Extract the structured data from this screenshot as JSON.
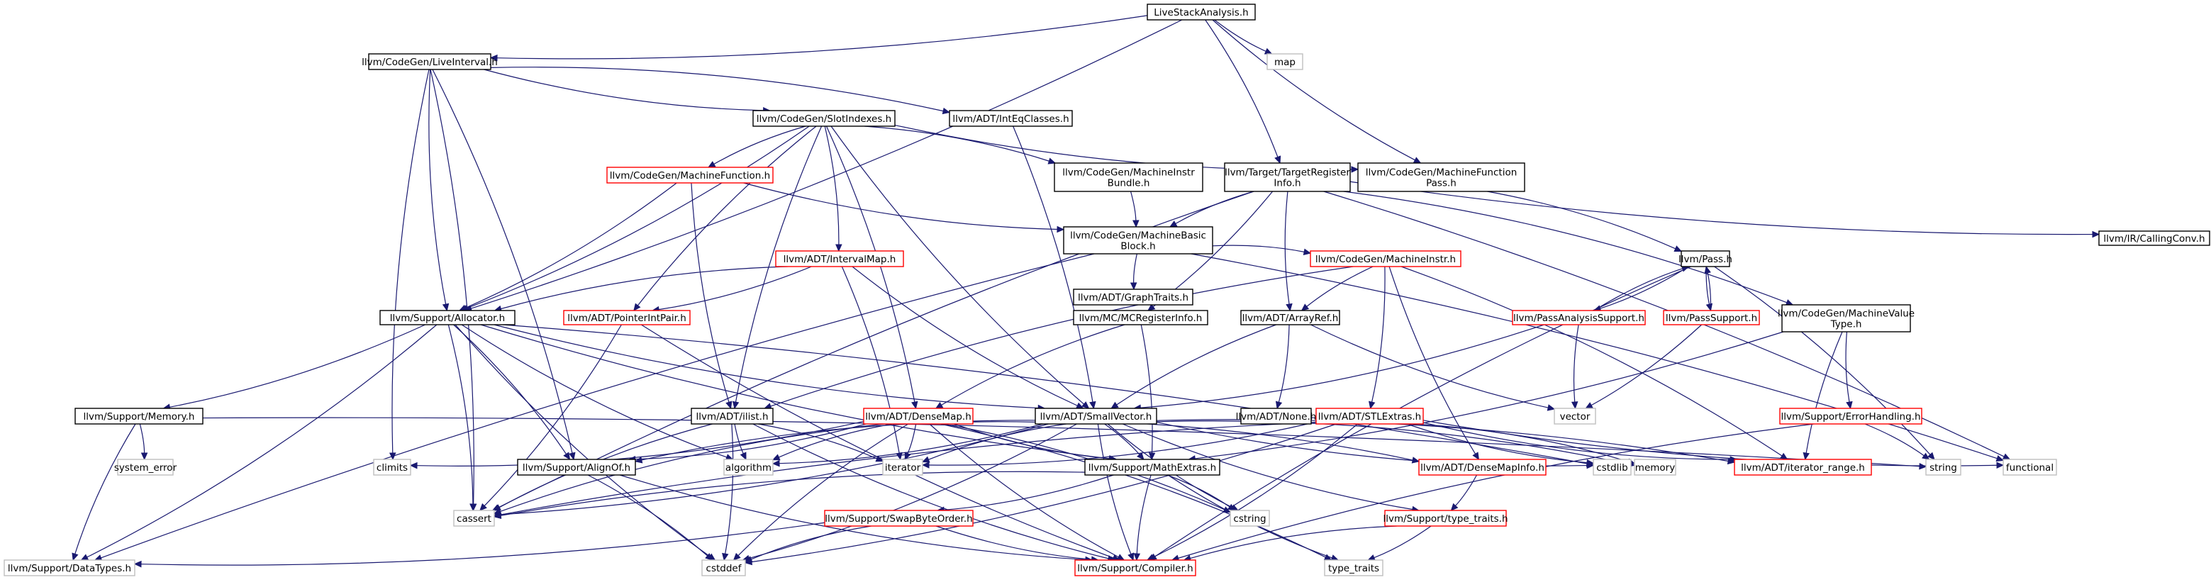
{
  "colors": {
    "root_fill": "#bfbfbf",
    "border_documented": "#000000",
    "border_has_children_hidden": "#ff0000",
    "border_external": "#bfbfbf",
    "edge": "#191970"
  },
  "nodes": [
    {
      "id": "root",
      "label": [
        "LiveStackAnalysis.h"
      ],
      "kind": "root"
    },
    {
      "id": "liveint",
      "label": [
        "llvm/CodeGen/LiveInterval.h"
      ],
      "kind": "doc"
    },
    {
      "id": "map",
      "label": [
        "map"
      ],
      "kind": "ext"
    },
    {
      "id": "slotidx",
      "label": [
        "llvm/CodeGen/SlotIndexes.h"
      ],
      "kind": "doc"
    },
    {
      "id": "inteq",
      "label": [
        "llvm/ADT/IntEqClasses.h"
      ],
      "kind": "doc"
    },
    {
      "id": "mf",
      "label": [
        "llvm/CodeGen/MachineFunction.h"
      ],
      "kind": "red"
    },
    {
      "id": "mib",
      "label": [
        "llvm/CodeGen/MachineInstr",
        "Bundle.h"
      ],
      "kind": "doc"
    },
    {
      "id": "tri",
      "label": [
        "llvm/Target/TargetRegister",
        "Info.h"
      ],
      "kind": "doc"
    },
    {
      "id": "mfp",
      "label": [
        "llvm/CodeGen/MachineFunction",
        "Pass.h"
      ],
      "kind": "doc"
    },
    {
      "id": "mbb",
      "label": [
        "llvm/CodeGen/MachineBasic",
        "Block.h"
      ],
      "kind": "doc"
    },
    {
      "id": "callconv",
      "label": [
        "llvm/IR/CallingConv.h"
      ],
      "kind": "doc"
    },
    {
      "id": "graphtraits",
      "label": [
        "llvm/ADT/GraphTraits.h"
      ],
      "kind": "doc"
    },
    {
      "id": "intervalmap",
      "label": [
        "llvm/ADT/IntervalMap.h"
      ],
      "kind": "red"
    },
    {
      "id": "mi",
      "label": [
        "llvm/CodeGen/MachineInstr.h"
      ],
      "kind": "red"
    },
    {
      "id": "pass",
      "label": [
        "llvm/Pass.h"
      ],
      "kind": "doc"
    },
    {
      "id": "allocator",
      "label": [
        "llvm/Support/Allocator.h"
      ],
      "kind": "doc"
    },
    {
      "id": "ptrintpair",
      "label": [
        "llvm/ADT/PointerIntPair.h"
      ],
      "kind": "red"
    },
    {
      "id": "mcreg",
      "label": [
        "llvm/MC/MCRegisterInfo.h"
      ],
      "kind": "doc"
    },
    {
      "id": "arrayref",
      "label": [
        "llvm/ADT/ArrayRef.h"
      ],
      "kind": "doc"
    },
    {
      "id": "passanalysis",
      "label": [
        "llvm/PassAnalysisSupport.h"
      ],
      "kind": "red"
    },
    {
      "id": "passsupport",
      "label": [
        "llvm/PassSupport.h"
      ],
      "kind": "red"
    },
    {
      "id": "mvt",
      "label": [
        "llvm/CodeGen/MachineValue",
        "Type.h"
      ],
      "kind": "doc"
    },
    {
      "id": "memory_h",
      "label": [
        "llvm/Support/Memory.h"
      ],
      "kind": "doc"
    },
    {
      "id": "ilist",
      "label": [
        "llvm/ADT/ilist.h"
      ],
      "kind": "doc"
    },
    {
      "id": "densemap",
      "label": [
        "llvm/ADT/DenseMap.h"
      ],
      "kind": "red"
    },
    {
      "id": "smallvec",
      "label": [
        "llvm/ADT/SmallVector.h"
      ],
      "kind": "doc"
    },
    {
      "id": "none",
      "label": [
        "llvm/ADT/None.h"
      ],
      "kind": "doc"
    },
    {
      "id": "stlextras",
      "label": [
        "llvm/ADT/STLExtras.h"
      ],
      "kind": "red"
    },
    {
      "id": "vector",
      "label": [
        "vector"
      ],
      "kind": "ext"
    },
    {
      "id": "errhandling",
      "label": [
        "llvm/Support/ErrorHandling.h"
      ],
      "kind": "red"
    },
    {
      "id": "syserr",
      "label": [
        "system_error"
      ],
      "kind": "ext"
    },
    {
      "id": "climits",
      "label": [
        "climits"
      ],
      "kind": "ext"
    },
    {
      "id": "alignof",
      "label": [
        "llvm/Support/AlignOf.h"
      ],
      "kind": "doc"
    },
    {
      "id": "algorithm",
      "label": [
        "algorithm"
      ],
      "kind": "ext"
    },
    {
      "id": "iterator",
      "label": [
        "iterator"
      ],
      "kind": "ext"
    },
    {
      "id": "mathextras",
      "label": [
        "llvm/Support/MathExtras.h"
      ],
      "kind": "doc"
    },
    {
      "id": "densemapinfo",
      "label": [
        "llvm/ADT/DenseMapInfo.h"
      ],
      "kind": "red"
    },
    {
      "id": "cstdlib",
      "label": [
        "cstdlib"
      ],
      "kind": "ext"
    },
    {
      "id": "memory",
      "label": [
        "memory"
      ],
      "kind": "ext"
    },
    {
      "id": "iterrange",
      "label": [
        "llvm/ADT/iterator_range.h"
      ],
      "kind": "red"
    },
    {
      "id": "string",
      "label": [
        "string"
      ],
      "kind": "ext"
    },
    {
      "id": "functional",
      "label": [
        "functional"
      ],
      "kind": "ext"
    },
    {
      "id": "cassert",
      "label": [
        "cassert"
      ],
      "kind": "ext"
    },
    {
      "id": "cstring",
      "label": [
        "cstring"
      ],
      "kind": "ext"
    },
    {
      "id": "typetraits_h",
      "label": [
        "llvm/Support/type_traits.h"
      ],
      "kind": "red"
    },
    {
      "id": "swapbyte",
      "label": [
        "llvm/Support/SwapByteOrder.h"
      ],
      "kind": "red"
    },
    {
      "id": "datatypes",
      "label": [
        "llvm/Support/DataTypes.h"
      ],
      "kind": "ext"
    },
    {
      "id": "cstddef",
      "label": [
        "cstddef"
      ],
      "kind": "ext"
    },
    {
      "id": "compiler",
      "label": [
        "llvm/Support/Compiler.h"
      ],
      "kind": "red"
    },
    {
      "id": "type_traits",
      "label": [
        "type_traits"
      ],
      "kind": "ext"
    }
  ],
  "edges": [
    [
      "root",
      "liveint"
    ],
    [
      "root",
      "map"
    ],
    [
      "root",
      "tri"
    ],
    [
      "root",
      "mfp"
    ],
    [
      "root",
      "allocator"
    ],
    [
      "liveint",
      "slotidx"
    ],
    [
      "liveint",
      "inteq"
    ],
    [
      "liveint",
      "allocator"
    ],
    [
      "liveint",
      "alignof"
    ],
    [
      "liveint",
      "climits"
    ],
    [
      "liveint",
      "cassert"
    ],
    [
      "slotidx",
      "mf"
    ],
    [
      "slotidx",
      "mib"
    ],
    [
      "slotidx",
      "mfp"
    ],
    [
      "slotidx",
      "intervalmap"
    ],
    [
      "slotidx",
      "ptrintpair"
    ],
    [
      "slotidx",
      "allocator"
    ],
    [
      "slotidx",
      "ilist"
    ],
    [
      "slotidx",
      "densemap"
    ],
    [
      "slotidx",
      "smallvec"
    ],
    [
      "inteq",
      "smallvec"
    ],
    [
      "mf",
      "mbb"
    ],
    [
      "mf",
      "allocator"
    ],
    [
      "mf",
      "ilist"
    ],
    [
      "mib",
      "mbb"
    ],
    [
      "tri",
      "mbb"
    ],
    [
      "tri",
      "mcreg"
    ],
    [
      "tri",
      "arrayref"
    ],
    [
      "tri",
      "mvt"
    ],
    [
      "tri",
      "callconv"
    ],
    [
      "tri",
      "functional"
    ],
    [
      "tri",
      "cassert"
    ],
    [
      "mfp",
      "pass"
    ],
    [
      "mbb",
      "graphtraits"
    ],
    [
      "mbb",
      "mi"
    ],
    [
      "mbb",
      "datatypes"
    ],
    [
      "mbb",
      "functional"
    ],
    [
      "intervalmap",
      "allocator"
    ],
    [
      "intervalmap",
      "ptrintpair"
    ],
    [
      "intervalmap",
      "smallvec"
    ],
    [
      "intervalmap",
      "iterator"
    ],
    [
      "mi",
      "arrayref"
    ],
    [
      "mi",
      "stlextras"
    ],
    [
      "mi",
      "densemapinfo"
    ],
    [
      "mi",
      "iterrange"
    ],
    [
      "mi",
      "ilist"
    ],
    [
      "pass",
      "passanalysis"
    ],
    [
      "pass",
      "passsupport"
    ],
    [
      "pass",
      "string"
    ],
    [
      "pass",
      "compiler"
    ],
    [
      "passanalysis",
      "pass"
    ],
    [
      "passanalysis",
      "vector"
    ],
    [
      "passanalysis",
      "smallvec"
    ],
    [
      "passsupport",
      "pass"
    ],
    [
      "passsupport",
      "vector"
    ],
    [
      "mvt",
      "errhandling"
    ],
    [
      "mvt",
      "mathextras"
    ],
    [
      "mvt",
      "iterrange"
    ],
    [
      "allocator",
      "memory_h"
    ],
    [
      "allocator",
      "smallvec"
    ],
    [
      "allocator",
      "alignof"
    ],
    [
      "allocator",
      "mathextras"
    ],
    [
      "allocator",
      "datatypes"
    ],
    [
      "allocator",
      "algorithm"
    ],
    [
      "allocator",
      "cassert"
    ],
    [
      "allocator",
      "cstddef"
    ],
    [
      "allocator",
      "cstdlib"
    ],
    [
      "ptrintpair",
      "compiler"
    ],
    [
      "ptrintpair",
      "cassert"
    ],
    [
      "mcreg",
      "densemap"
    ],
    [
      "mcreg",
      "mathextras"
    ],
    [
      "arrayref",
      "smallvec"
    ],
    [
      "arrayref",
      "none"
    ],
    [
      "arrayref",
      "vector"
    ],
    [
      "memory_h",
      "syserr"
    ],
    [
      "memory_h",
      "datatypes"
    ],
    [
      "memory_h",
      "string"
    ],
    [
      "ilist",
      "algorithm"
    ],
    [
      "ilist",
      "iterator"
    ],
    [
      "ilist",
      "cassert"
    ],
    [
      "ilist",
      "cstddef"
    ],
    [
      "ilist",
      "compiler"
    ],
    [
      "densemap",
      "densemapinfo"
    ],
    [
      "densemap",
      "mathextras"
    ],
    [
      "densemap",
      "alignof"
    ],
    [
      "densemap",
      "algorithm"
    ],
    [
      "densemap",
      "iterator"
    ],
    [
      "densemap",
      "cassert"
    ],
    [
      "densemap",
      "cstring"
    ],
    [
      "densemap",
      "cstddef"
    ],
    [
      "densemap",
      "type_traits"
    ],
    [
      "densemap",
      "compiler"
    ],
    [
      "densemap",
      "climits"
    ],
    [
      "smallvec",
      "alignof"
    ],
    [
      "smallvec",
      "mathextras"
    ],
    [
      "smallvec",
      "typetraits_h"
    ],
    [
      "smallvec",
      "algorithm"
    ],
    [
      "smallvec",
      "iterator"
    ],
    [
      "smallvec",
      "cassert"
    ],
    [
      "smallvec",
      "cstring"
    ],
    [
      "smallvec",
      "cstddef"
    ],
    [
      "smallvec",
      "cstdlib"
    ],
    [
      "smallvec",
      "memory"
    ],
    [
      "smallvec",
      "compiler"
    ],
    [
      "smallvec",
      "iterrange"
    ],
    [
      "stlextras",
      "iterrange"
    ],
    [
      "stlextras",
      "compiler"
    ],
    [
      "stlextras",
      "functional"
    ],
    [
      "stlextras",
      "iterator"
    ],
    [
      "stlextras",
      "cstdlib"
    ],
    [
      "stlextras",
      "memory"
    ],
    [
      "stlextras",
      "cassert"
    ],
    [
      "stlextras",
      "cstddef"
    ],
    [
      "errhandling",
      "compiler"
    ],
    [
      "errhandling",
      "string"
    ],
    [
      "alignof",
      "compiler"
    ],
    [
      "alignof",
      "cstddef"
    ],
    [
      "mathextras",
      "compiler"
    ],
    [
      "mathextras",
      "swapbyte"
    ],
    [
      "mathextras",
      "cassert"
    ],
    [
      "mathextras",
      "cstring"
    ],
    [
      "mathextras",
      "type_traits"
    ],
    [
      "densemapinfo",
      "typetraits_h"
    ],
    [
      "typetraits_h",
      "compiler"
    ],
    [
      "typetraits_h",
      "type_traits"
    ],
    [
      "swapbyte",
      "compiler"
    ],
    [
      "swapbyte",
      "datatypes"
    ],
    [
      "swapbyte",
      "cstddef"
    ]
  ]
}
